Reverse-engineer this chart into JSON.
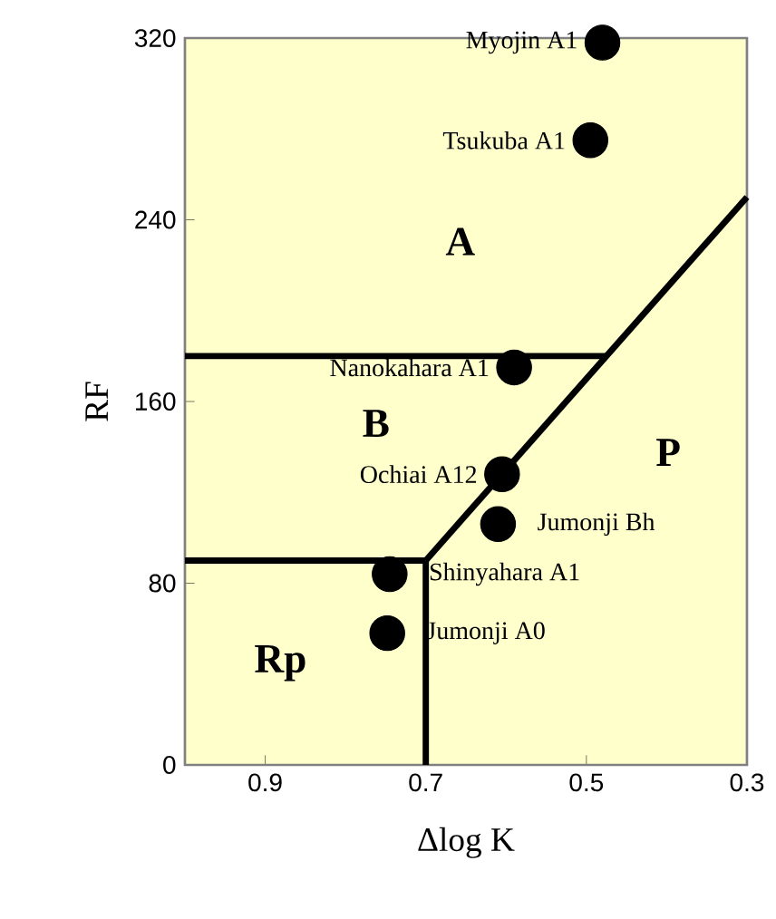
{
  "chart_data": {
    "type": "scatter",
    "xlabel": "Δlog K",
    "ylabel": "RF",
    "xlim": [
      1.0,
      0.3
    ],
    "ylim": [
      0,
      320
    ],
    "xticks": [
      0.9,
      0.7,
      0.5,
      0.3
    ],
    "yticks": [
      0,
      80,
      160,
      240,
      320
    ],
    "series": [
      {
        "name": "Myojin A1",
        "color": "#000000",
        "marker": "circle",
        "x": [
          0.48
        ],
        "values": [
          318
        ]
      },
      {
        "name": "Tsukuba A1",
        "color": "#000000",
        "marker": "circle",
        "x": [
          0.495
        ],
        "values": [
          275
        ]
      },
      {
        "name": "Nanokahara A1",
        "color": "#000000",
        "marker": "circle",
        "x": [
          0.59
        ],
        "values": [
          175
        ]
      },
      {
        "name": "Ochiai A12",
        "color": "#000000",
        "marker": "circle",
        "x": [
          0.605
        ],
        "values": [
          128
        ]
      },
      {
        "name": "Jumonji Bh",
        "color": "#000000",
        "marker": "circle",
        "x": [
          0.61
        ],
        "values": [
          106
        ]
      },
      {
        "name": "Shinyahara A1",
        "color": "#000000",
        "marker": "circle",
        "x": [
          0.745
        ],
        "values": [
          84
        ]
      },
      {
        "name": "Jumonji A0",
        "color": "#000000",
        "marker": "circle",
        "x": [
          0.748
        ],
        "values": [
          58
        ]
      },
      {
        "type": "line",
        "color": "#000000",
        "marker": "none",
        "x": [
          1.0,
          0.475
        ],
        "values": [
          180,
          180
        ]
      },
      {
        "type": "line",
        "color": "#000000",
        "marker": "none",
        "x": [
          1.0,
          0.7
        ],
        "values": [
          90,
          90
        ]
      },
      {
        "type": "line",
        "color": "#000000",
        "marker": "none",
        "x": [
          0.7,
          0.7
        ],
        "values": [
          0,
          90
        ]
      },
      {
        "type": "line",
        "color": "#000000",
        "marker": "none",
        "x": [
          0.7,
          0.3
        ],
        "values": [
          90,
          250
        ]
      }
    ],
    "annotations": [
      "A",
      "B",
      "P",
      "Rp"
    ]
  }
}
